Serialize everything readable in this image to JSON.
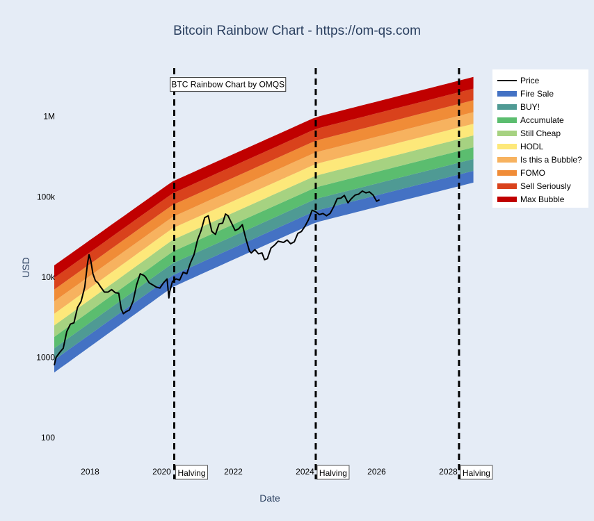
{
  "chart_data": {
    "type": "area",
    "title": "Bitcoin Rainbow Chart - https://om-qs.com",
    "xlabel": "Date",
    "ylabel": "USD",
    "y_scale": "log",
    "ylim": [
      50,
      4000000
    ],
    "xlim": [
      2017.0,
      2029.0
    ],
    "x_ticks": [
      {
        "v": 2018,
        "label": "2018"
      },
      {
        "v": 2020,
        "label": "2020"
      },
      {
        "v": 2022,
        "label": "2022"
      },
      {
        "v": 2024,
        "label": "2024"
      },
      {
        "v": 2026,
        "label": "2026"
      },
      {
        "v": 2028,
        "label": "2028"
      }
    ],
    "y_ticks": [
      {
        "v": 100,
        "label": "100"
      },
      {
        "v": 1000,
        "label": "1000"
      },
      {
        "v": 10000,
        "label": "10k"
      },
      {
        "v": 100000,
        "label": "100k"
      },
      {
        "v": 1000000,
        "label": "1M"
      }
    ],
    "band_range": [
      2017.0,
      2028.7
    ],
    "band_edges": [
      {
        "x": 2017.0,
        "values": [
          650,
          930,
          1300,
          1800,
          2500,
          3500,
          5000,
          7000,
          9800,
          14000
        ]
      },
      {
        "x": 2020.3,
        "values": [
          7500,
          10500,
          14800,
          20700,
          29000,
          40500,
          56000,
          79000,
          110000,
          155000
        ]
      },
      {
        "x": 2024.3,
        "values": [
          48000,
          67000,
          94000,
          131000,
          183000,
          256000,
          358000,
          500000,
          700000,
          980000
        ]
      },
      {
        "x": 2028.7,
        "values": [
          150000,
          210000,
          295000,
          413000,
          580000,
          810000,
          1130000,
          1590000,
          2220000,
          3100000
        ]
      }
    ],
    "bands": [
      {
        "name": "Fire Sale",
        "color": "#4472c4"
      },
      {
        "name": "BUY!",
        "color": "#4f9a94"
      },
      {
        "name": "Accumulate",
        "color": "#5bbd6f"
      },
      {
        "name": "Still Cheap",
        "color": "#a6d281"
      },
      {
        "name": "HODL",
        "color": "#fde87a"
      },
      {
        "name": "Is this a Bubble?",
        "color": "#f7b25f"
      },
      {
        "name": "FOMO",
        "color": "#f08c37"
      },
      {
        "name": "Sell Seriously",
        "color": "#d9421c"
      },
      {
        "name": "Max Bubble",
        "color": "#c00000"
      }
    ],
    "price_series": {
      "name": "Price",
      "color": "#000000",
      "x": [
        2017.0,
        2017.05,
        2017.15,
        2017.25,
        2017.35,
        2017.45,
        2017.55,
        2017.65,
        2017.75,
        2017.85,
        2017.93,
        2017.97,
        2018.02,
        2018.08,
        2018.15,
        2018.22,
        2018.3,
        2018.4,
        2018.5,
        2018.6,
        2018.7,
        2018.8,
        2018.87,
        2018.93,
        2019.0,
        2019.1,
        2019.2,
        2019.3,
        2019.4,
        2019.5,
        2019.55,
        2019.65,
        2019.75,
        2019.85,
        2019.95,
        2020.05,
        2020.15,
        2020.2,
        2020.22,
        2020.3,
        2020.4,
        2020.5,
        2020.6,
        2020.7,
        2020.8,
        2020.9,
        2021.0,
        2021.1,
        2021.2,
        2021.3,
        2021.4,
        2021.5,
        2021.6,
        2021.7,
        2021.78,
        2021.85,
        2021.95,
        2022.05,
        2022.15,
        2022.25,
        2022.35,
        2022.45,
        2022.5,
        2022.6,
        2022.7,
        2022.8,
        2022.87,
        2022.95,
        2023.05,
        2023.15,
        2023.25,
        2023.4,
        2023.5,
        2023.6,
        2023.7,
        2023.8,
        2023.9,
        2024.0,
        2024.1,
        2024.2,
        2024.3,
        2024.4,
        2024.5,
        2024.6,
        2024.7,
        2024.8,
        2024.9,
        2025.0,
        2025.1,
        2025.2,
        2025.3,
        2025.4,
        2025.5,
        2025.6,
        2025.7,
        2025.8,
        2025.9,
        2026.0,
        2026.08
      ],
      "y": [
        800,
        1000,
        1150,
        1300,
        2100,
        2600,
        2700,
        4200,
        5000,
        7500,
        15000,
        19000,
        16000,
        11000,
        9000,
        8500,
        7500,
        6500,
        6500,
        7000,
        6400,
        6300,
        4000,
        3500,
        3700,
        3900,
        5000,
        8000,
        11000,
        10500,
        10000,
        8500,
        8000,
        7500,
        7300,
        8500,
        9500,
        5500,
        6500,
        8800,
        9500,
        9200,
        11500,
        11000,
        15000,
        19000,
        29000,
        38000,
        55000,
        58000,
        37000,
        34000,
        46000,
        47000,
        61000,
        58000,
        47000,
        38000,
        40000,
        45000,
        30000,
        21000,
        20000,
        22000,
        19500,
        20000,
        16500,
        17000,
        23000,
        25000,
        28000,
        27000,
        29000,
        26000,
        27500,
        35000,
        37000,
        43000,
        52000,
        68000,
        65000,
        60000,
        62000,
        58000,
        62000,
        75000,
        95000,
        96000,
        104000,
        84000,
        95000,
        105000,
        108000,
        118000,
        112000,
        115000,
        105000,
        88000,
        92000
      ]
    },
    "halving_lines": [
      {
        "x": 2020.35,
        "label": "Halving"
      },
      {
        "x": 2024.3,
        "label": "Halving"
      },
      {
        "x": 2028.3,
        "label": "Halving"
      }
    ],
    "annotation": {
      "text": "BTC Rainbow Chart by OMQS",
      "x": 2021.85,
      "y": 2500000
    },
    "legend": {
      "placement": "top-right",
      "items": [
        {
          "label": "Price",
          "color": "#000000",
          "kind": "line"
        },
        {
          "label": "Fire Sale",
          "color": "#4472c4",
          "kind": "band"
        },
        {
          "label": "BUY!",
          "color": "#4f9a94",
          "kind": "band"
        },
        {
          "label": "Accumulate",
          "color": "#5bbd6f",
          "kind": "band"
        },
        {
          "label": "Still Cheap",
          "color": "#a6d281",
          "kind": "band"
        },
        {
          "label": "HODL",
          "color": "#fde87a",
          "kind": "band"
        },
        {
          "label": "Is this a Bubble?",
          "color": "#f7b25f",
          "kind": "band"
        },
        {
          "label": "FOMO",
          "color": "#f08c37",
          "kind": "band"
        },
        {
          "label": "Sell Seriously",
          "color": "#d9421c",
          "kind": "band"
        },
        {
          "label": "Max Bubble",
          "color": "#c00000",
          "kind": "band"
        }
      ]
    }
  }
}
